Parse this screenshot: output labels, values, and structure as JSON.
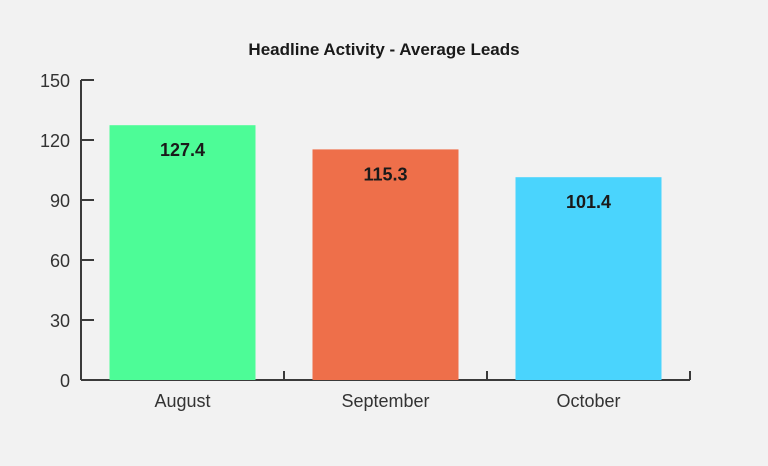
{
  "chart_data": {
    "type": "bar",
    "title": "Headline Activity - Average Leads",
    "categories": [
      "August",
      "September",
      "October"
    ],
    "values": [
      127.4,
      115.3,
      101.4
    ],
    "value_labels": [
      "127.4",
      "115.3",
      "101.4"
    ],
    "colors": [
      "#4dfc97",
      "#ee6f4a",
      "#4ad4fd"
    ],
    "ylim": [
      0,
      150
    ],
    "yticks": [
      0,
      30,
      60,
      90,
      120,
      150
    ],
    "xlabel": "",
    "ylabel": "",
    "grid": false,
    "legend": "none"
  }
}
